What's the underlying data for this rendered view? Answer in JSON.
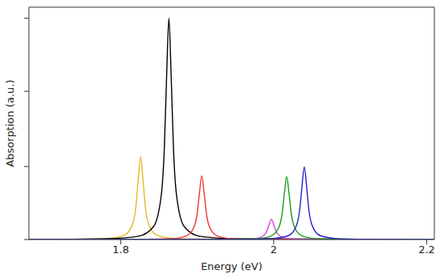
{
  "chart_data": {
    "type": "line",
    "x_label": "Energy (eV)",
    "y_label": "Absorption (a.u.)",
    "xlim": [
      1.68,
      2.21
    ],
    "xticks": [
      1.8,
      2,
      2.2
    ],
    "ylim": [
      0,
      1.05
    ],
    "yticks": [
      0,
      0.33,
      0.67,
      1
    ],
    "tick_labels": "x",
    "grid": false,
    "series": [
      {
        "color": "#e8b828",
        "x": [
          1.68,
          1.746,
          1.786,
          1.806,
          1.816,
          1.82,
          1.823,
          1.826,
          1.829,
          1.832,
          1.836,
          1.846,
          1.866,
          1.906,
          2.21
        ],
        "values": [
          0,
          0.002,
          0.006,
          0.022,
          0.075,
          0.154,
          0.276,
          0.376,
          0.276,
          0.154,
          0.075,
          0.022,
          0.006,
          0.002,
          0
        ]
      },
      {
        "color": "#000000",
        "x": [
          1.68,
          1.783,
          1.823,
          1.843,
          1.853,
          1.857,
          1.86,
          1.863,
          1.866,
          1.869,
          1.873,
          1.883,
          1.903,
          1.943,
          2.21
        ],
        "values": [
          0,
          0.004,
          0.015,
          0.059,
          0.2,
          0.41,
          0.735,
          1,
          0.735,
          0.41,
          0.2,
          0.059,
          0.015,
          0.004,
          0
        ]
      },
      {
        "color": "#e8393a",
        "x": [
          1.68,
          1.826,
          1.866,
          1.886,
          1.896,
          1.9,
          1.903,
          1.906,
          1.909,
          1.912,
          1.916,
          1.926,
          1.946,
          1.986,
          2.21
        ],
        "values": [
          0,
          0.001,
          0.004,
          0.017,
          0.058,
          0.118,
          0.212,
          0.288,
          0.212,
          0.118,
          0.058,
          0.017,
          0.004,
          0.001,
          0
        ]
      },
      {
        "color": "#e040e0",
        "x": [
          1.68,
          1.917,
          1.957,
          1.977,
          1.987,
          1.991,
          1.994,
          1.997,
          2,
          2.003,
          2.007,
          2.017,
          2.037,
          2.077,
          2.21
        ],
        "values": [
          0,
          0,
          0.001,
          0.005,
          0.018,
          0.038,
          0.068,
          0.092,
          0.068,
          0.038,
          0.018,
          0.005,
          0.001,
          0,
          0
        ]
      },
      {
        "color": "#1a9a1a",
        "x": [
          1.68,
          1.937,
          1.977,
          1.997,
          2.007,
          2.011,
          2.014,
          2.017,
          2.02,
          2.023,
          2.027,
          2.037,
          2.057,
          2.097,
          2.21
        ],
        "values": [
          0,
          0.001,
          0.004,
          0.017,
          0.057,
          0.116,
          0.209,
          0.284,
          0.209,
          0.116,
          0.057,
          0.017,
          0.004,
          0.001,
          0
        ]
      },
      {
        "color": "#2020d0",
        "x": [
          1.68,
          1.96,
          2,
          2.02,
          2.03,
          2.034,
          2.037,
          2.04,
          2.043,
          2.046,
          2.05,
          2.06,
          2.08,
          2.12,
          2.21
        ],
        "values": [
          0,
          0.001,
          0.005,
          0.019,
          0.066,
          0.134,
          0.241,
          0.328,
          0.241,
          0.134,
          0.066,
          0.019,
          0.005,
          0.001,
          0
        ]
      }
    ]
  }
}
